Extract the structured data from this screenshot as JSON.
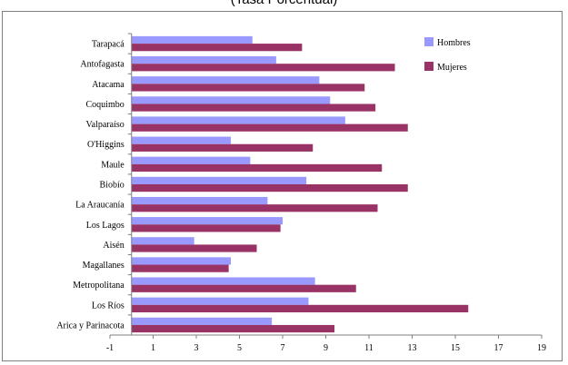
{
  "chart_data": {
    "type": "bar",
    "orientation": "horizontal",
    "title": "(Tasa Porcentual)",
    "categories": [
      "Tarapacá",
      "Antofagasta",
      "Atacama",
      "Coquimbo",
      "Valparaíso",
      "O'Higgins",
      "Maule",
      "Biobío",
      "La Araucanía",
      "Los Lagos",
      "Aisén",
      "Magallanes",
      "Metropolitana",
      "Los Ríos",
      "Arica y Parinacota"
    ],
    "series": [
      {
        "name": "Hombres",
        "color": "#9999ff",
        "values": [
          5.6,
          6.7,
          8.7,
          9.2,
          9.9,
          4.6,
          5.5,
          8.1,
          6.3,
          7.0,
          2.9,
          4.6,
          8.5,
          8.2,
          6.5
        ]
      },
      {
        "name": "Mujeres",
        "color": "#993366",
        "values": [
          7.9,
          12.2,
          10.8,
          11.3,
          12.8,
          8.4,
          11.6,
          12.8,
          11.4,
          6.9,
          5.8,
          4.5,
          10.4,
          15.6,
          9.4
        ]
      }
    ],
    "xlim": [
      -1,
      19
    ],
    "xticks": [
      "-1",
      "1",
      "3",
      "5",
      "7",
      "9",
      "11",
      "13",
      "15",
      "17",
      "19"
    ],
    "grid": false,
    "legend": "top-right"
  }
}
